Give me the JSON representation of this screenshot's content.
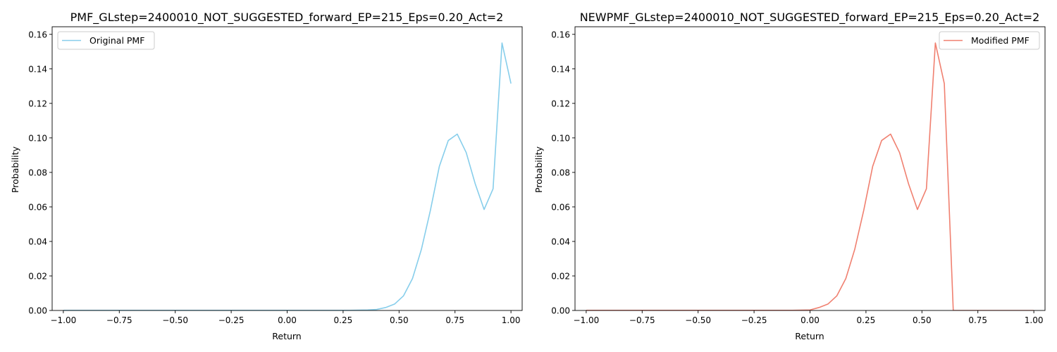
{
  "chart_data": [
    {
      "type": "line",
      "title": "PMF_GLstep=2400010_NOT_SUGGESTED_forward_EP=215_Eps=0.20_Act=2",
      "xlabel": "Return",
      "ylabel": "Probability",
      "xlim": [
        -1.05,
        1.05
      ],
      "ylim": [
        0,
        0.1644
      ],
      "xticks": [
        -1.0,
        -0.75,
        -0.5,
        -0.25,
        0.0,
        0.25,
        0.5,
        0.75,
        1.0
      ],
      "xtick_labels": [
        "−1.00",
        "−0.75",
        "−0.50",
        "−0.25",
        "0.00",
        "0.25",
        "0.50",
        "0.75",
        "1.00"
      ],
      "yticks": [
        0.0,
        0.02,
        0.04,
        0.06,
        0.08,
        0.1,
        0.12,
        0.14,
        0.16
      ],
      "ytick_labels": [
        "0.00",
        "0.02",
        "0.04",
        "0.06",
        "0.08",
        "0.10",
        "0.12",
        "0.14",
        "0.16"
      ],
      "grid": false,
      "legend": "upper-left",
      "series": [
        {
          "name": "Original PMF",
          "color": "#87ceeb",
          "x": [
            -1.0,
            -0.96,
            -0.92,
            -0.88,
            -0.84,
            -0.8,
            -0.76,
            -0.72,
            -0.68,
            -0.64,
            -0.6,
            -0.56,
            -0.52,
            -0.48,
            -0.44,
            -0.4,
            -0.36,
            -0.32,
            -0.28,
            -0.24,
            -0.2,
            -0.16,
            -0.12,
            -0.08,
            -0.04,
            0.0,
            0.04,
            0.08,
            0.12,
            0.16,
            0.2,
            0.24,
            0.28,
            0.32,
            0.36,
            0.4,
            0.44,
            0.48,
            0.52,
            0.56,
            0.6,
            0.64,
            0.68,
            0.72,
            0.76,
            0.8,
            0.84,
            0.88,
            0.92,
            0.96,
            1.0
          ],
          "y": [
            0.0001,
            0.0001,
            0.0001,
            0.0001,
            0.0001,
            0.0001,
            0.0001,
            0.0001,
            0.0001,
            0.0001,
            0.0001,
            0.0001,
            0.0001,
            0.0001,
            0.0001,
            0.0001,
            0.0001,
            0.0001,
            0.0001,
            0.0001,
            0.0001,
            0.0001,
            0.0001,
            0.0001,
            0.0001,
            0.0001,
            0.0001,
            0.0001,
            0.0001,
            0.0001,
            0.0001,
            0.0001,
            0.0001,
            0.0002,
            0.0003,
            0.0006,
            0.0017,
            0.0037,
            0.0085,
            0.0185,
            0.0355,
            0.058,
            0.0835,
            0.0985,
            0.1022,
            0.0915,
            0.0735,
            0.0585,
            0.0705,
            0.155,
            0.1315
          ]
        }
      ]
    },
    {
      "type": "line",
      "title": "NEWPMF_GLstep=2400010_NOT_SUGGESTED_forward_EP=215_Eps=0.20_Act=2",
      "xlabel": "Return",
      "ylabel": "Probability",
      "xlim": [
        -1.05,
        1.05
      ],
      "ylim": [
        0,
        0.1644
      ],
      "xticks": [
        -1.0,
        -0.75,
        -0.5,
        -0.25,
        0.0,
        0.25,
        0.5,
        0.75,
        1.0
      ],
      "xtick_labels": [
        "−1.00",
        "−0.75",
        "−0.50",
        "−0.25",
        "0.00",
        "0.25",
        "0.50",
        "0.75",
        "1.00"
      ],
      "yticks": [
        0.0,
        0.02,
        0.04,
        0.06,
        0.08,
        0.1,
        0.12,
        0.14,
        0.16
      ],
      "ytick_labels": [
        "0.00",
        "0.02",
        "0.04",
        "0.06",
        "0.08",
        "0.10",
        "0.12",
        "0.14",
        "0.16"
      ],
      "grid": false,
      "legend": "upper-right",
      "series": [
        {
          "name": "Modified PMF",
          "color": "#f08070",
          "x": [
            -1.0,
            -0.96,
            -0.92,
            -0.88,
            -0.84,
            -0.8,
            -0.76,
            -0.72,
            -0.68,
            -0.64,
            -0.6,
            -0.56,
            -0.52,
            -0.48,
            -0.44,
            -0.4,
            -0.36,
            -0.32,
            -0.28,
            -0.24,
            -0.2,
            -0.16,
            -0.12,
            -0.08,
            -0.04,
            0.0,
            0.04,
            0.08,
            0.12,
            0.16,
            0.2,
            0.24,
            0.28,
            0.32,
            0.36,
            0.4,
            0.44,
            0.48,
            0.52,
            0.56,
            0.6,
            0.64,
            0.68,
            0.72,
            0.76,
            0.8,
            0.84,
            0.88,
            0.92,
            0.96,
            1.0
          ],
          "y": [
            0.0001,
            0.0001,
            0.0001,
            0.0001,
            0.0001,
            0.0001,
            0.0001,
            0.0001,
            0.0001,
            0.0001,
            0.0001,
            0.0001,
            0.0001,
            0.0001,
            0.0001,
            0.0001,
            0.0001,
            0.0001,
            0.0001,
            0.0001,
            0.0001,
            0.0001,
            0.0001,
            0.0001,
            0.0002,
            0.0003,
            0.0017,
            0.0037,
            0.0085,
            0.0185,
            0.0355,
            0.058,
            0.0835,
            0.0985,
            0.1022,
            0.0915,
            0.0735,
            0.0585,
            0.0705,
            0.155,
            0.1315,
            0.0,
            0.0,
            0.0,
            0.0,
            0.0,
            0.0,
            0.0,
            0.0,
            0.0,
            0.0
          ]
        }
      ]
    }
  ]
}
